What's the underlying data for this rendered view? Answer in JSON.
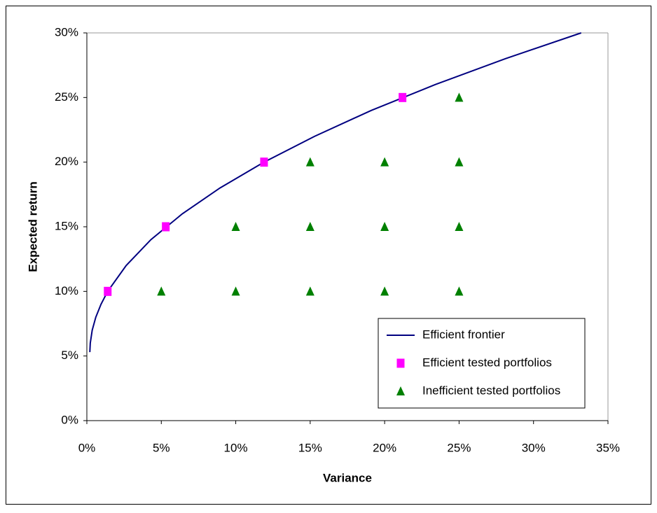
{
  "chart_data": {
    "type": "scatter",
    "x_label": "Variance",
    "y_label": "Expected return",
    "xlim": [
      0,
      35
    ],
    "ylim": [
      0,
      30
    ],
    "xticks": [
      {
        "value": 0,
        "label": "0%"
      },
      {
        "value": 5,
        "label": "5%"
      },
      {
        "value": 10,
        "label": "10%"
      },
      {
        "value": 15,
        "label": "15%"
      },
      {
        "value": 20,
        "label": "20%"
      },
      {
        "value": 25,
        "label": "25%"
      },
      {
        "value": 30,
        "label": "30%"
      },
      {
        "value": 35,
        "label": "35%"
      }
    ],
    "yticks": [
      {
        "value": 0,
        "label": "0%"
      },
      {
        "value": 5,
        "label": "5%"
      },
      {
        "value": 10,
        "label": "10%"
      },
      {
        "value": 15,
        "label": "15%"
      },
      {
        "value": 20,
        "label": "20%"
      },
      {
        "value": 25,
        "label": "25%"
      },
      {
        "value": 30,
        "label": "30%"
      }
    ],
    "grid": false,
    "legend": "lower-right",
    "series": [
      {
        "name": "Efficient frontier",
        "color": "#000080",
        "marker": "line",
        "x": [
          0.2,
          0.23,
          0.36,
          0.6,
          0.95,
          1.4,
          2.64,
          4.3,
          6.41,
          8.94,
          11.9,
          15.3,
          19.1,
          23.4,
          28.1,
          33.2
        ],
        "values": [
          5.3,
          6,
          7,
          8,
          9,
          10,
          12,
          14,
          16,
          18,
          20,
          22,
          24,
          26,
          28,
          30
        ]
      },
      {
        "name": "Efficient tested portfolios",
        "color": "#ff00ff",
        "marker": "square",
        "x": [
          1.4,
          5.3,
          11.9,
          21.2
        ],
        "values": [
          10,
          15,
          20,
          25
        ]
      },
      {
        "name": "Inefficient tested portfolios",
        "color": "#008000",
        "marker": "triangle",
        "x": [
          5,
          10,
          15,
          20,
          25,
          10,
          15,
          20,
          25,
          15,
          20,
          25,
          25
        ],
        "values": [
          10,
          10,
          10,
          10,
          10,
          15,
          15,
          15,
          15,
          20,
          20,
          20,
          25
        ]
      }
    ]
  }
}
